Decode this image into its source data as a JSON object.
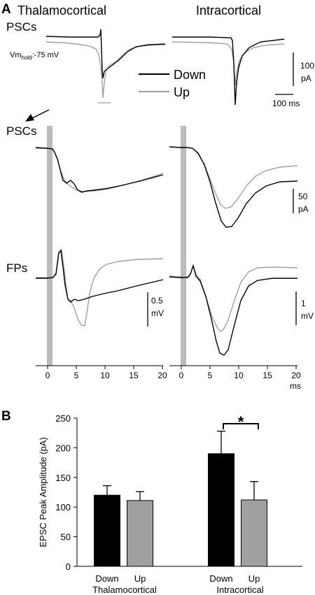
{
  "panel_a": {
    "label": "A",
    "col_titles": [
      "Thalamocortical",
      "Intracortical"
    ],
    "row_labels": {
      "top": "PSCs",
      "mid": "PSCs",
      "fps": "FPs"
    },
    "vm_main": "Vm",
    "vm_sub": "hold",
    "vm_value": ":-75 mV",
    "legend": [
      "Down",
      "Up"
    ],
    "scale_top": {
      "amp1": "100",
      "amp2": "pA",
      "time": "100 ms"
    },
    "scale_psc": {
      "amp1": "50",
      "amp2": "pA"
    },
    "scale_fp_tc": {
      "amp1": "0.5",
      "amp2": "mV"
    },
    "scale_fp_ic": {
      "amp1": "1",
      "amp2": "mV"
    },
    "x_ticks": [
      "0",
      "5",
      "10",
      "15",
      "20"
    ],
    "x_unit": "ms"
  },
  "panel_b": {
    "label": "B",
    "significance": "*",
    "group_labels": [
      "Thalamocortical",
      "Intracortical"
    ]
  },
  "colors": {
    "down": "#000000",
    "up": "#a0a0a0",
    "stim": "#bbbbbb"
  },
  "chart_data": [
    {
      "type": "line",
      "panel": "A",
      "x_unit": "ms",
      "xlim": [
        0,
        20
      ],
      "x_ticks": [
        0,
        5,
        10,
        15,
        20
      ],
      "series_names": [
        "Down",
        "Up"
      ],
      "note": "traces: PSCs (Thalamocortical, Intracortical) and FPs (Thalamocortical, Intracortical)"
    },
    {
      "type": "bar",
      "panel": "B",
      "ylabel": "EPSC Peak Amplitude (pA)",
      "ylim": [
        0,
        250
      ],
      "y_ticks": [
        0,
        50,
        100,
        150,
        200,
        250
      ],
      "groups": [
        "Thalamocortical",
        "Intracortical"
      ],
      "categories": [
        "Down",
        "Up",
        "Down",
        "Up"
      ],
      "values": [
        120,
        111,
        190,
        112
      ],
      "errors": [
        16,
        15,
        38,
        31
      ],
      "bar_colors": [
        "#000000",
        "#a0a0a0",
        "#000000",
        "#a0a0a0"
      ],
      "significance": [
        {
          "between": [
            2,
            3
          ],
          "label": "*"
        }
      ]
    }
  ]
}
